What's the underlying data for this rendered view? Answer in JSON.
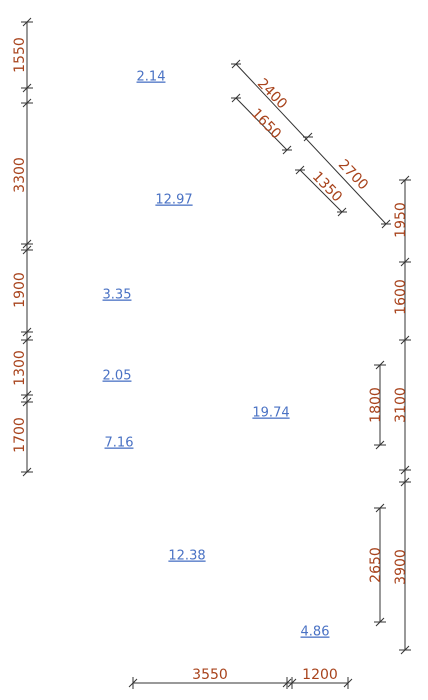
{
  "dimensions": [
    "1550",
    "3300",
    "1900",
    "1300",
    "1700",
    "1950",
    "1600",
    "3100",
    "1800",
    "3900",
    "2650",
    "3550",
    "1200",
    "2400",
    "2700",
    "1650",
    "1350"
  ],
  "rooms": [
    "2.14",
    "12.97",
    "3.35",
    "2.05",
    "19.74",
    "7.16",
    "12.38",
    "4.86"
  ]
}
